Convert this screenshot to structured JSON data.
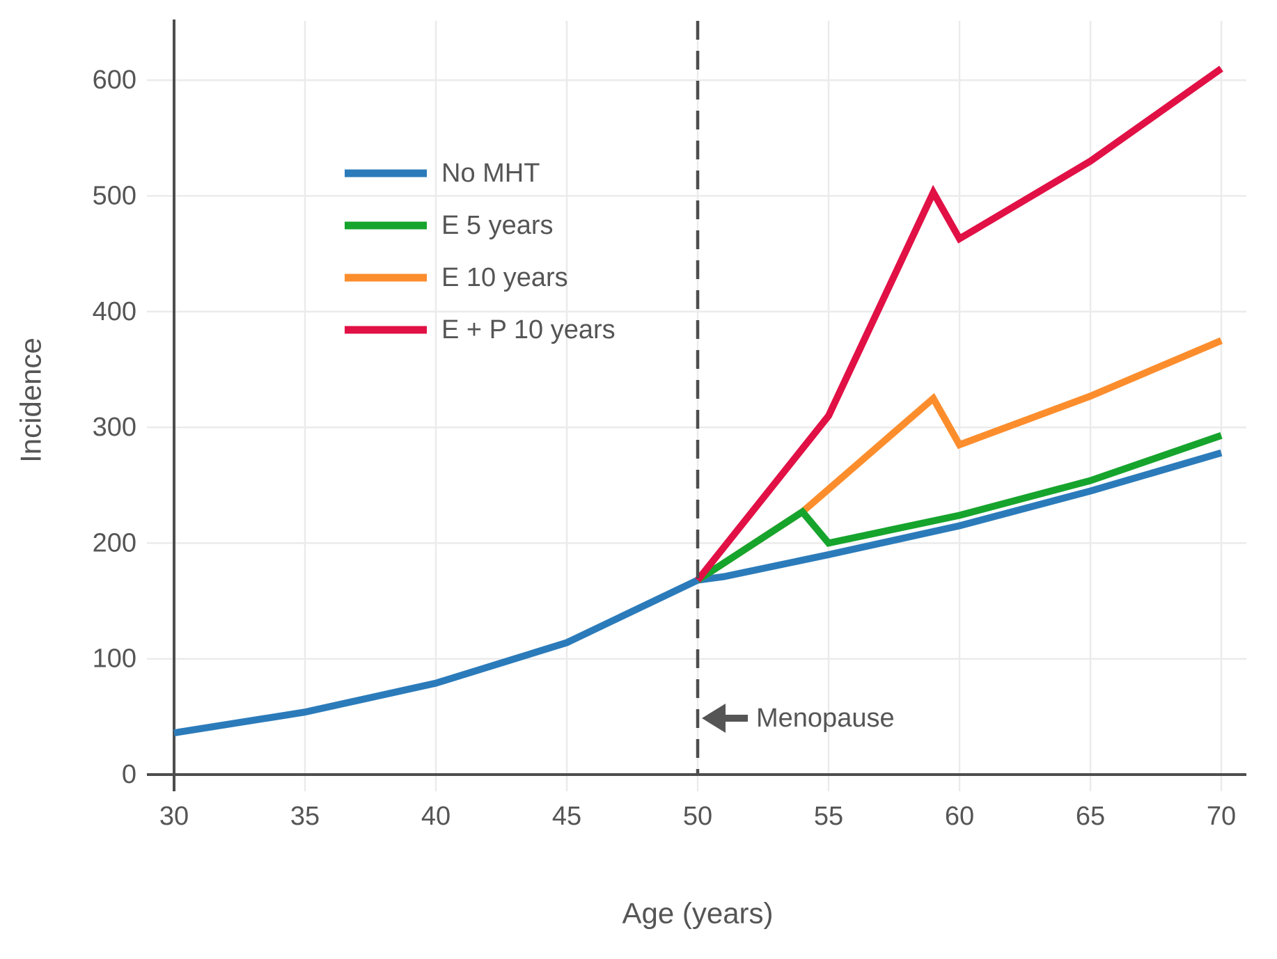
{
  "chart_data": {
    "type": "line",
    "title": "",
    "xlabel": "Age (years)",
    "ylabel": "Incidence",
    "x_min": 30,
    "x_max": 70,
    "ylim": [
      0,
      650
    ],
    "x_ticks": [
      30,
      35,
      40,
      45,
      50,
      55,
      60,
      65,
      70
    ],
    "y_ticks": [
      0,
      100,
      200,
      300,
      400,
      500,
      600
    ],
    "grid": true,
    "legend_position": "upper-left-inside",
    "colors": {
      "axis": "#4d4d4d",
      "grid": "#ebebeb",
      "text": "#555555",
      "dashed_line": "#4d4d4d",
      "arrow": "#555555"
    },
    "annotations": [
      {
        "type": "vline",
        "x": 50,
        "style": "dashed",
        "label": "Menopause",
        "arrow": "left"
      }
    ],
    "series": [
      {
        "name": "No MHT",
        "color": "#2b7bba",
        "points": [
          [
            30,
            36
          ],
          [
            35,
            54
          ],
          [
            40,
            79
          ],
          [
            45,
            114
          ],
          [
            50,
            168
          ],
          [
            51,
            171
          ],
          [
            55,
            190
          ],
          [
            60,
            215
          ],
          [
            65,
            245
          ],
          [
            70,
            278
          ]
        ]
      },
      {
        "name": "E 5 years",
        "color": "#16a42d",
        "points": [
          [
            50,
            168
          ],
          [
            54,
            227
          ],
          [
            55,
            200
          ],
          [
            60,
            224
          ],
          [
            65,
            254
          ],
          [
            70,
            293
          ]
        ]
      },
      {
        "name": "E 10 years",
        "color": "#fc8d2d",
        "points": [
          [
            50,
            168
          ],
          [
            54,
            227
          ],
          [
            59,
            325
          ],
          [
            60,
            285
          ],
          [
            65,
            327
          ],
          [
            70,
            375
          ]
        ]
      },
      {
        "name": "E + P 10 years",
        "color": "#e11045",
        "points": [
          [
            50,
            168
          ],
          [
            55,
            310
          ],
          [
            59,
            503
          ],
          [
            60,
            463
          ],
          [
            65,
            530
          ],
          [
            70,
            610
          ]
        ]
      }
    ]
  }
}
